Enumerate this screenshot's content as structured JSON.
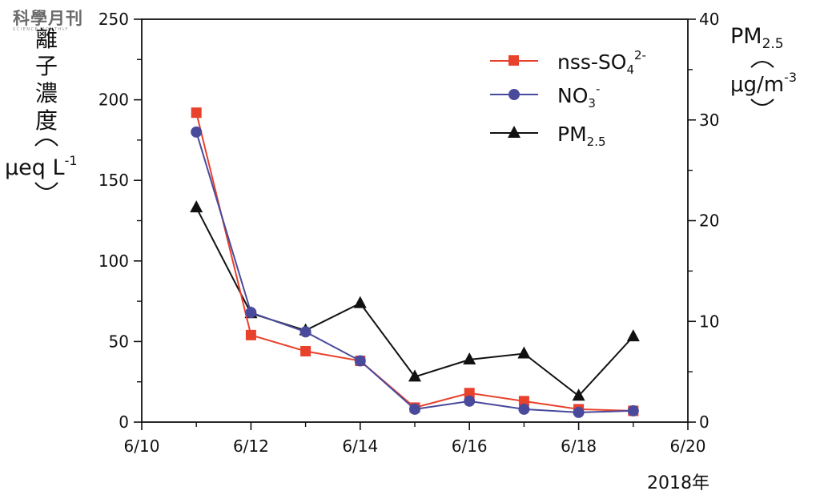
{
  "logo": {
    "main": "科學月刊",
    "sub": "SCIENCE MONTHLY"
  },
  "y_left_label": {
    "chars": [
      "離",
      "子",
      "濃",
      "度"
    ],
    "unit": "μeq L",
    "unit_sup": "-1"
  },
  "y_right_label": {
    "main": "PM",
    "sub": "2.5",
    "unit": "μg/m",
    "unit_sup": "-3"
  },
  "x_note": "2018年",
  "legend": [
    {
      "key": "nss",
      "text": "nss-SO",
      "sub": "4",
      "sup": "2-"
    },
    {
      "key": "no3",
      "text": "NO",
      "sub": "3",
      "sup": "-"
    },
    {
      "key": "pm",
      "text": "PM",
      "sub": "2.5",
      "sup": ""
    }
  ],
  "chart_data": {
    "type": "line",
    "x_ticks": [
      "6/10",
      "6/12",
      "6/14",
      "6/16",
      "6/18",
      "6/20"
    ],
    "x": [
      "6/11",
      "6/12",
      "6/13",
      "6/14",
      "6/15",
      "6/16",
      "6/17",
      "6/18",
      "6/19"
    ],
    "y_left_ticks": [
      "0",
      "50",
      "100",
      "150",
      "200",
      "250"
    ],
    "y_right_ticks": [
      "0",
      "10",
      "20",
      "30",
      "40"
    ],
    "ylim_left": [
      0,
      250
    ],
    "ylim_right": [
      0,
      40
    ],
    "xlim": [
      "6/10",
      "6/20"
    ],
    "series": [
      {
        "key": "nss",
        "axis": "left",
        "color": "#e8412c",
        "marker": "square",
        "values": [
          192,
          54,
          44,
          38,
          9,
          18,
          13,
          8,
          7
        ]
      },
      {
        "key": "no3",
        "axis": "left",
        "color": "#4a4a9c",
        "marker": "circle",
        "values": [
          180,
          68,
          56,
          38,
          8,
          13,
          8,
          6,
          7
        ]
      },
      {
        "key": "pm",
        "axis": "right",
        "color": "#111111",
        "marker": "triangle",
        "values": [
          21.3,
          10.8,
          9.1,
          11.8,
          4.5,
          6.2,
          6.8,
          2.6,
          8.5
        ]
      }
    ]
  }
}
